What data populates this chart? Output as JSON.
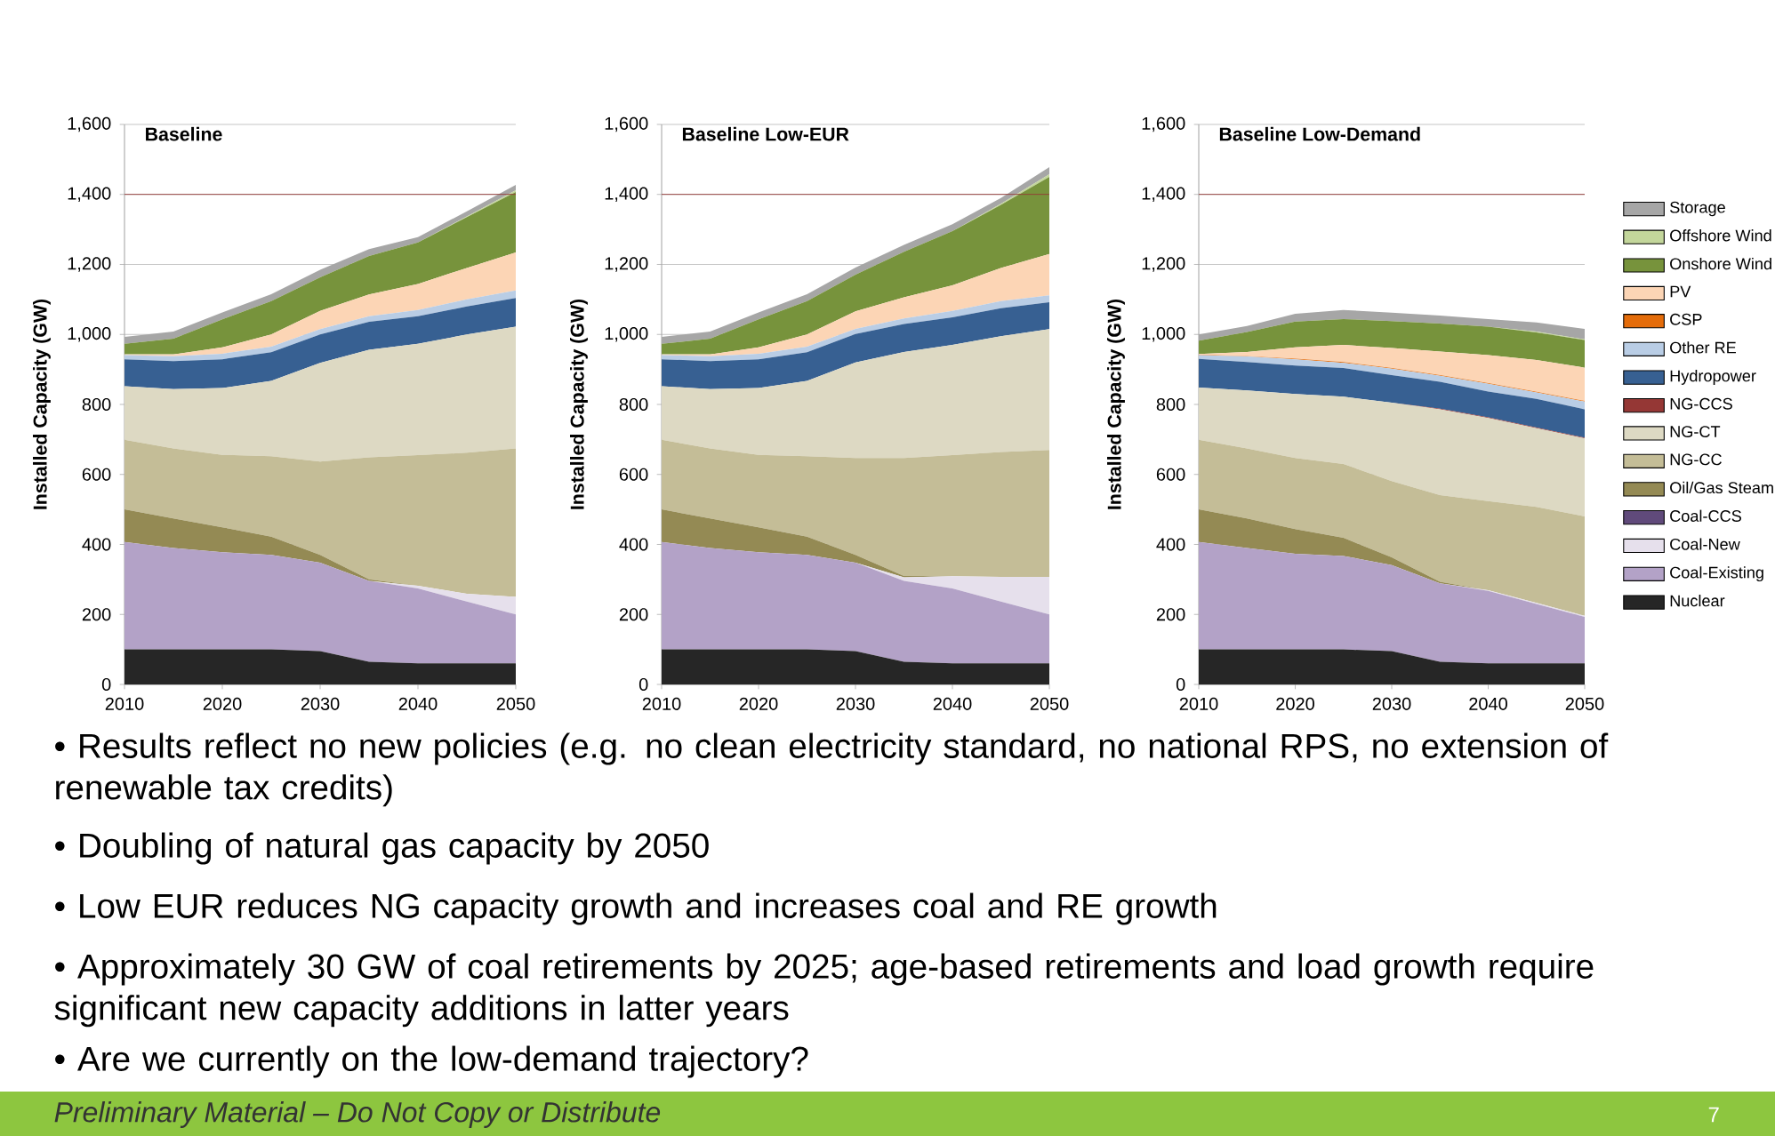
{
  "chart_data": [
    {
      "type": "area",
      "stacked": true,
      "title": "Baseline",
      "ylabel": "Installed Capacity (GW)",
      "x": [
        2010,
        2015,
        2020,
        2025,
        2030,
        2035,
        2040,
        2045,
        2050
      ],
      "xlim": [
        2010,
        2050
      ],
      "xticks": [
        2010,
        2020,
        2030,
        2040,
        2050
      ],
      "ylim": [
        0,
        1600
      ],
      "yticks": [
        0,
        200,
        400,
        600,
        800,
        {
          "value": 1000,
          "label": "1,000"
        },
        {
          "value": 1200,
          "label": "1,200"
        },
        {
          "value": 1400,
          "label": "1,400"
        },
        {
          "value": 1600,
          "label": "1,600"
        }
      ],
      "grid": "y",
      "legend": false,
      "ref_lines": [
        {
          "axis": "y",
          "value": 1400,
          "color": "#953735"
        }
      ],
      "annotations": [
        "• Results reflect no new policies (e.g. no clean electricity standard, no national RPS, no extension of renewable tax credits)",
        "• Doubling of natural gas capacity by 2050",
        "• Low EUR reduces NG capacity growth and increases coal and RE growth",
        "• Approximately 30 GW of coal retirements by 2025; age-based retirements and load growth require significant new capacity additions in latter years",
        "• Are we currently on the low-demand trajectory?",
        "*Preliminary Material – Do Not Copy or Distribute*",
        "7"
      ],
      "series": [
        {
          "color": "#262626",
          "values": [
            100,
            100,
            100,
            100,
            95,
            65,
            60,
            60,
            60
          ]
        },
        {
          "color": "#b3a2c7",
          "values": [
            307,
            290,
            278,
            270,
            253,
            231,
            214,
            177,
            140
          ]
        },
        {
          "color": "#e6e0ec",
          "values": [
            0,
            0,
            0,
            0,
            0,
            0,
            8,
            22,
            50
          ]
        },
        {
          "color": "#948a54",
          "values": [
            93,
            84,
            71,
            52,
            22,
            4,
            0,
            0,
            0
          ]
        },
        {
          "color": "#c4bd97",
          "values": [
            199,
            200,
            207,
            230,
            267,
            349,
            373,
            403,
            424
          ]
        },
        {
          "color": "#ddd9c3",
          "values": [
            153,
            170,
            191,
            215,
            282,
            307,
            318,
            338,
            348
          ]
        },
        {
          "color": "#376092",
          "values": [
            77,
            80,
            82,
            82,
            81,
            80,
            79,
            80,
            82
          ]
        },
        {
          "color": "#b9cde5",
          "values": [
            12,
            14,
            16,
            16,
            15,
            16,
            18,
            20,
            22
          ]
        },
        {
          "color": "#fcd5b5",
          "values": [
            2,
            5,
            18,
            35,
            52,
            62,
            74,
            90,
            108
          ]
        },
        {
          "color": "#77933c",
          "values": [
            30,
            45,
            80,
            95,
            96,
            110,
            119,
            145,
            173
          ]
        },
        {
          "color": "#c3d69b",
          "values": [
            0,
            0,
            0,
            0,
            0,
            0,
            0,
            2,
            5
          ]
        },
        {
          "color": "#a6a6a6",
          "values": [
            20,
            20,
            20,
            20,
            22,
            20,
            15,
            15,
            15
          ]
        }
      ]
    },
    {
      "type": "area",
      "stacked": true,
      "title": "Baseline Low-EUR",
      "ylabel": "Installed Capacity (GW)",
      "x": [
        2010,
        2015,
        2020,
        2025,
        2030,
        2035,
        2040,
        2045,
        2050
      ],
      "xlim": [
        2010,
        2050
      ],
      "xticks": [
        2010,
        2020,
        2030,
        2040,
        2050
      ],
      "ylim": [
        0,
        1600
      ],
      "yticks": [
        0,
        200,
        400,
        600,
        800,
        {
          "value": 1000,
          "label": "1,000"
        },
        {
          "value": 1200,
          "label": "1,200"
        },
        {
          "value": 1400,
          "label": "1,400"
        },
        {
          "value": 1600,
          "label": "1,600"
        }
      ],
      "grid": "y",
      "legend": false,
      "ref_lines": [
        {
          "axis": "y",
          "value": 1400,
          "color": "#953735"
        }
      ],
      "series": [
        {
          "color": "#262626",
          "values": [
            100,
            100,
            100,
            100,
            95,
            65,
            60,
            60,
            60
          ]
        },
        {
          "color": "#b3a2c7",
          "values": [
            307,
            290,
            278,
            270,
            253,
            231,
            214,
            177,
            140
          ]
        },
        {
          "color": "#e6e0ec",
          "values": [
            0,
            0,
            0,
            0,
            0,
            10,
            35,
            70,
            107
          ]
        },
        {
          "color": "#948a54",
          "values": [
            93,
            84,
            71,
            52,
            22,
            4,
            0,
            0,
            0
          ]
        },
        {
          "color": "#c4bd97",
          "values": [
            199,
            200,
            207,
            230,
            277,
            337,
            346,
            357,
            363
          ]
        },
        {
          "color": "#ddd9c3",
          "values": [
            153,
            170,
            191,
            215,
            273,
            303,
            315,
            331,
            345
          ]
        },
        {
          "color": "#376092",
          "values": [
            77,
            80,
            82,
            82,
            81,
            80,
            79,
            80,
            77
          ]
        },
        {
          "color": "#b9cde5",
          "values": [
            12,
            14,
            16,
            16,
            15,
            16,
            18,
            20,
            20
          ]
        },
        {
          "color": "#fcd5b5",
          "values": [
            2,
            5,
            18,
            35,
            50,
            60,
            73,
            95,
            118
          ]
        },
        {
          "color": "#77933c",
          "values": [
            30,
            45,
            80,
            95,
            105,
            130,
            155,
            180,
            220
          ]
        },
        {
          "color": "#c3d69b",
          "values": [
            0,
            0,
            0,
            0,
            0,
            0,
            0,
            3,
            8
          ]
        },
        {
          "color": "#a6a6a6",
          "values": [
            20,
            20,
            20,
            20,
            20,
            20,
            20,
            17,
            20
          ]
        }
      ]
    },
    {
      "type": "area",
      "stacked": true,
      "title": "Baseline Low-Demand",
      "ylabel": "Installed Capacity (GW)",
      "x": [
        2010,
        2015,
        2020,
        2025,
        2030,
        2035,
        2040,
        2045,
        2050
      ],
      "xlim": [
        2010,
        2050
      ],
      "xticks": [
        2010,
        2020,
        2030,
        2040,
        2050
      ],
      "ylim": [
        0,
        1600
      ],
      "yticks": [
        0,
        200,
        400,
        600,
        800,
        {
          "value": 1000,
          "label": "1,000"
        },
        {
          "value": 1200,
          "label": "1,200"
        },
        {
          "value": 1400,
          "label": "1,400"
        },
        {
          "value": 1600,
          "label": "1,600"
        }
      ],
      "grid": "y",
      "legend": "right",
      "ref_lines": [
        {
          "axis": "y",
          "value": 1400,
          "color": "#953735"
        }
      ],
      "series": [
        {
          "name": "Nuclear",
          "color": "#262626",
          "values": [
            100,
            100,
            100,
            100,
            95,
            65,
            60,
            60,
            60
          ]
        },
        {
          "name": "Coal-Existing",
          "color": "#b3a2c7",
          "values": [
            307,
            290,
            273,
            267,
            246,
            224,
            207,
            170,
            133
          ]
        },
        {
          "name": "Coal-New",
          "color": "#e6e0ec",
          "values": [
            0,
            0,
            0,
            0,
            0,
            0,
            2,
            3,
            3
          ]
        },
        {
          "name": "Coal-CCS",
          "color": "#604a7b",
          "values": [
            null,
            null,
            null,
            null,
            null,
            null,
            null,
            null,
            null
          ]
        },
        {
          "name": "Oil/Gas Steam",
          "color": "#948a54",
          "values": [
            93,
            84,
            71,
            52,
            22,
            4,
            0,
            0,
            0
          ]
        },
        {
          "name": "NG-CC",
          "color": "#c4bd97",
          "values": [
            199,
            200,
            203,
            211,
            218,
            248,
            255,
            274,
            284
          ]
        },
        {
          "name": "NG-CT",
          "color": "#ddd9c3",
          "values": [
            149,
            166,
            183,
            192,
            224,
            245,
            237,
            225,
            223
          ]
        },
        {
          "name": "NG-CCS",
          "color": "#953735",
          "values": [
            0,
            0,
            0,
            0,
            0,
            2,
            2,
            2,
            2
          ]
        },
        {
          "name": "Hydropower",
          "color": "#376092",
          "values": [
            82,
            81,
            81,
            82,
            79,
            77,
            74,
            82,
            81
          ]
        },
        {
          "name": "Other RE",
          "color": "#b9cde5",
          "values": [
            11,
            16,
            18,
            15,
            18,
            17,
            22,
            18,
            22
          ]
        },
        {
          "name": "CSP",
          "color": "#e46c0a",
          "values": [
            1,
            1,
            2,
            2,
            2,
            2,
            2,
            2,
            2
          ]
        },
        {
          "name": "PV",
          "color": "#fcd5b5",
          "values": [
            2,
            12,
            32,
            49,
            57,
            67,
            80,
            91,
            95
          ]
        },
        {
          "name": "Onshore Wind",
          "color": "#77933c",
          "values": [
            38,
            57,
            74,
            74,
            77,
            80,
            81,
            79,
            79
          ]
        },
        {
          "name": "Offshore Wind",
          "color": "#c3d69b",
          "values": [
            0,
            0,
            0,
            0,
            0,
            0,
            0,
            2,
            2
          ]
        },
        {
          "name": "Storage",
          "color": "#a6a6a6",
          "values": [
            18,
            17,
            22,
            26,
            24,
            23,
            22,
            26,
            30
          ]
        }
      ]
    }
  ]
}
